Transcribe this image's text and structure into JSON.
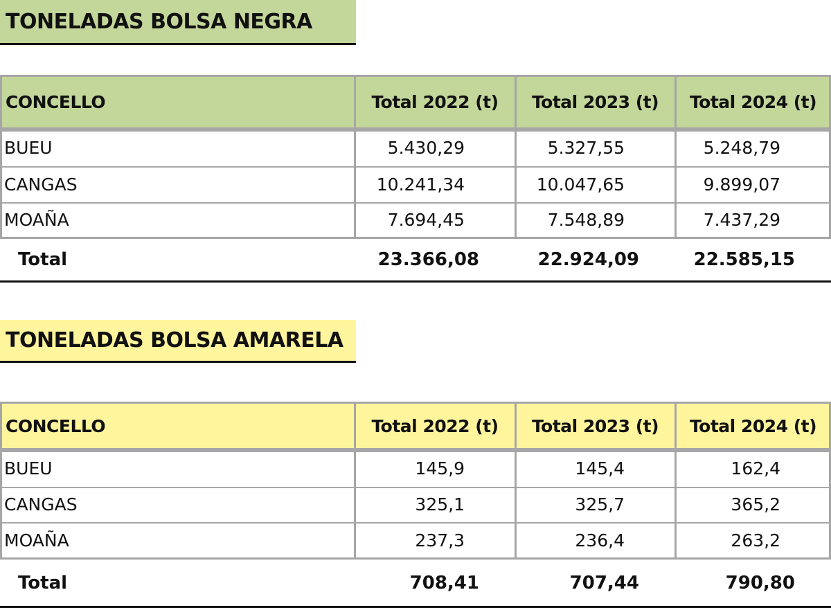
{
  "sections": [
    {
      "title": "TONELADAS BOLSA NEGRA",
      "table": {
        "header": [
          "CONCELLO",
          "Total 2022 (t)",
          "Total 2023 (t)",
          "Total 2024 (t)"
        ],
        "rows": [
          [
            "BUEU",
            "5.430,29",
            "5.327,55",
            "5.248,79"
          ],
          [
            "CANGAS",
            "10.241,34",
            "10.047,65",
            "9.899,07"
          ],
          [
            "MOAÑA",
            "7.694,45",
            "7.548,89",
            "7.437,29"
          ]
        ],
        "total": [
          "Total",
          "23.366,08",
          "22.924,09",
          "22.585,15"
        ]
      }
    },
    {
      "title": "TONELADAS BOLSA AMARELA",
      "table": {
        "header": [
          "CONCELLO",
          "Total 2022 (t)",
          "Total 2023 (t)",
          "Total 2024 (t)"
        ],
        "rows": [
          [
            "BUEU",
            "145,9",
            "145,4",
            "162,4"
          ],
          [
            "CANGAS",
            "325,1",
            "325,7",
            "365,2"
          ],
          [
            "MOAÑA",
            "237,3",
            "236,4",
            "263,2"
          ]
        ],
        "total": [
          "Total",
          "708,41",
          "707,44",
          "790,80"
        ]
      }
    }
  ]
}
